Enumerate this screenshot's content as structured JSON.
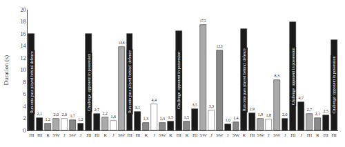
{
  "chart_data": {
    "type": "bar",
    "categories": [
      "HI",
      "HI",
      "R",
      "SW",
      "J",
      "SW",
      "J",
      "HI",
      "HI",
      "R",
      "J",
      "SW",
      "HI",
      "HI",
      "R",
      "J",
      "SW",
      "R",
      "HI",
      "R",
      "HI",
      "SW",
      "J",
      "SW",
      "J",
      "SW",
      "R",
      "HI",
      "SW",
      "J",
      "SW",
      "J",
      "HI",
      "J",
      "HI",
      "R",
      "HI",
      "HI"
    ],
    "values": [
      16.0,
      2.1,
      1.2,
      2.0,
      2.0,
      1.7,
      1.2,
      16.0,
      2.7,
      2.2,
      1.6,
      13.8,
      16.0,
      3.1,
      1.3,
      4.4,
      1.3,
      1.5,
      16.5,
      1.5,
      3.5,
      17.5,
      3.3,
      13.3,
      1.0,
      1.4,
      16.8,
      2.9,
      1.9,
      1.8,
      8.3,
      2.0,
      18.0,
      4.7,
      2.7,
      2.1,
      2.5,
      15.0
    ],
    "value_labels": [
      null,
      "2,1",
      "1,2",
      "2,0",
      "2,0",
      "1,7",
      "1,2",
      null,
      "2,7",
      "2,2",
      "1,6",
      "13,8",
      null,
      "3,1",
      "1,3",
      "4,4",
      "1,3",
      "1,5",
      null,
      "1,5",
      "3,5",
      "17,5",
      "3,3",
      "13,3",
      "1,0",
      "1,4",
      null,
      "2,9",
      "1,9",
      "1,8",
      "8,3",
      "2,0",
      null,
      "4,7",
      "2,7",
      "2,1",
      "2,5",
      null
    ],
    "colors": [
      "#1a1a1a",
      "#1a1a1a",
      "#888888",
      "#aaaaaa",
      "#ffffff",
      "#888888",
      "#1a1a1a",
      "#1a1a1a",
      "#1a1a1a",
      "#aaaaaa",
      "#ffffff",
      "#aaaaaa",
      "#1a1a1a",
      "#1a1a1a",
      "#888888",
      "#ffffff",
      "#888888",
      "#1a1a1a",
      "#1a1a1a",
      "#888888",
      "#1a1a1a",
      "#aaaaaa",
      "#ffffff",
      "#888888",
      "#1a1a1a",
      "#888888",
      "#1a1a1a",
      "#1a1a1a",
      "#aaaaaa",
      "#ffffff",
      "#aaaaaa",
      "#1a1a1a",
      "#1a1a1a",
      "#1a1a1a",
      "#aaaaaa",
      "#888888",
      "#1a1a1a",
      "#1a1a1a"
    ],
    "annotations": [
      {
        "x": 0,
        "text": "Run onto pass played behind defence"
      },
      {
        "x": 7,
        "text": "Challenge  opponent in possession"
      },
      {
        "x": 12,
        "text": "Run onto pass played behind  defence"
      },
      {
        "x": 18,
        "text": "Challenge  opponent in possession"
      },
      {
        "x": 26,
        "text": "Run onto pass played behind  defence"
      },
      {
        "x": 32,
        "text": "Challenge  opponent in possession"
      },
      {
        "x": 37,
        "text": "Challenge  opponent in possession"
      }
    ],
    "ylabel": "Duration (s)",
    "ylim": [
      0,
      20
    ],
    "yticks": [
      0,
      2,
      4,
      6,
      8,
      10,
      12,
      14,
      16,
      18,
      20
    ],
    "data_labels": true,
    "grid": false
  }
}
